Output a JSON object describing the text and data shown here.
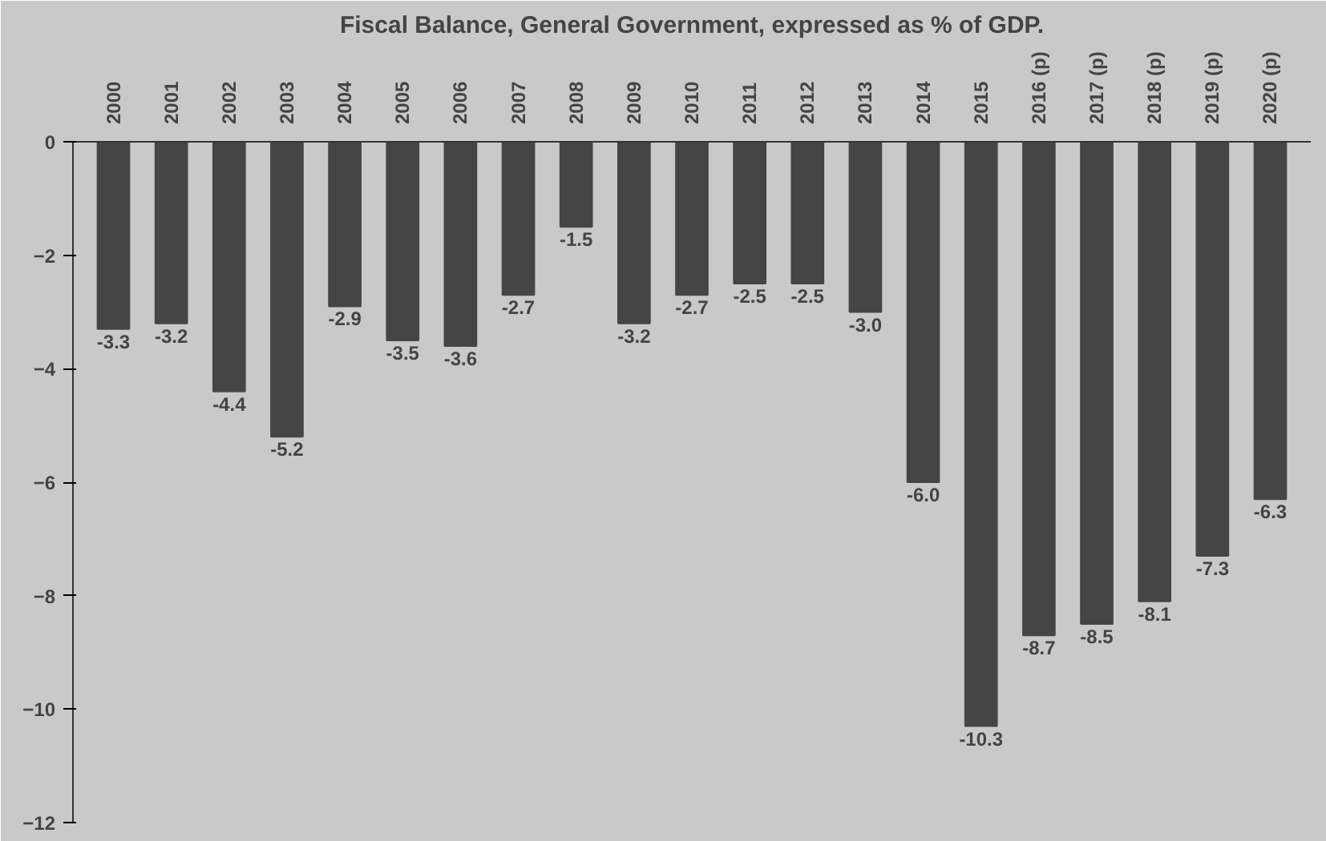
{
  "chart_data": {
    "type": "bar",
    "title": "Fiscal Balance, General Government, expressed as % of GDP.",
    "categories": [
      "2000",
      "2001",
      "2002",
      "2003",
      "2004",
      "2005",
      "2006",
      "2007",
      "2008",
      "2009",
      "2010",
      "2011",
      "2012",
      "2013",
      "2014",
      "2015",
      "2016 (p)",
      "2017 (p)",
      "2018 (p)",
      "2019 (p)",
      "2020 (p)"
    ],
    "values": [
      -3.3,
      -3.2,
      -4.4,
      -5.2,
      -2.9,
      -3.5,
      -3.6,
      -2.7,
      -1.5,
      -3.2,
      -2.7,
      -2.5,
      -2.5,
      -3.0,
      -6.0,
      -10.3,
      -8.7,
      -8.5,
      -8.1,
      -7.3,
      -6.3
    ],
    "value_labels": [
      "-3.3",
      "-3.2",
      "-4.4",
      "-5.2",
      "-2.9",
      "-3.5",
      "-3.6",
      "-2.7",
      "-1.5",
      "-3.2",
      "-2.7",
      "-2.5",
      "-2.5",
      "-3.0",
      "-6.0",
      "-10.3",
      "-8.7",
      "-8.5",
      "-8.1",
      "-7.3",
      "-6.3"
    ],
    "color": "#454545",
    "ylim": [
      -12,
      0
    ],
    "yticks": [
      0,
      -2,
      -4,
      -6,
      -8,
      -10,
      -12
    ],
    "grid": false
  }
}
